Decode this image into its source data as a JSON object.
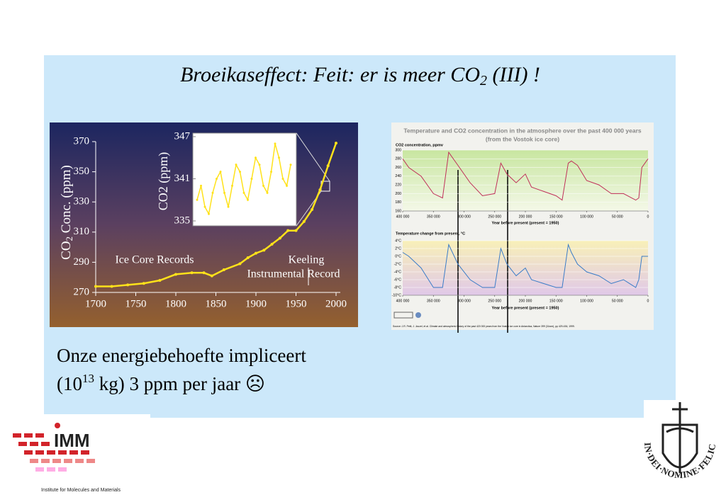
{
  "slide": {
    "title": {
      "main": "Broeikaseffect: Feit: er is meer CO",
      "sub": "2",
      "rest": " (III) !"
    },
    "body": {
      "line1": "Onze energiebehoefte impliceert",
      "line2_pre": "(10",
      "line2_sup": "13",
      "line2_rest": " kg) 3 ppm per jaar  ☹"
    },
    "logo_left": {
      "name": "IMM",
      "caption": "Institute for Molecules and Materials"
    },
    "logo_right": {
      "motto": "IN·DEI·NOMINE·FELICITER"
    }
  },
  "chart_data": [
    {
      "type": "line",
      "ylabel": {
        "main": "CO",
        "sub": "2",
        "rest": " Conc. (ppm)"
      },
      "annotations": {
        "ice": "Ice Core Records",
        "keeling1": "Keeling",
        "keeling2": "Instrumental Record"
      },
      "x": [
        1700,
        1720,
        1740,
        1760,
        1780,
        1800,
        1820,
        1835,
        1845,
        1860,
        1880,
        1890,
        1900,
        1910,
        1920,
        1930,
        1940,
        1950,
        1960,
        1970,
        1980,
        1990,
        2000
      ],
      "series": [
        {
          "color": "#ffe21a",
          "values": [
            274,
            274,
            275,
            276,
            278,
            282,
            283,
            283,
            281,
            285,
            289,
            293,
            296,
            298,
            302,
            306,
            311,
            311,
            317,
            325,
            338,
            354,
            369
          ]
        }
      ],
      "xlim": [
        1700,
        2000
      ],
      "xticks": [
        1700,
        1750,
        1800,
        1850,
        1900,
        1950,
        2000
      ],
      "ylim": [
        270,
        370
      ],
      "yticks": [
        270,
        290,
        310,
        330,
        350,
        370
      ]
    },
    {
      "type": "line",
      "ylabel": {
        "main": "CO2 (ppm)"
      },
      "series": [
        {
          "color": "#ffe21a",
          "values": [
            338,
            340,
            337,
            336,
            339,
            341,
            342,
            339,
            337,
            340,
            343,
            342,
            339,
            338,
            341,
            344,
            343,
            340,
            339,
            342,
            346,
            344,
            341,
            340,
            343
          ]
        }
      ],
      "ylim": [
        335,
        347
      ],
      "yticks": [
        335,
        341,
        347
      ]
    },
    {
      "type": "line",
      "title": "Temperature and CO2 concentration in the atmosphere over the past 400 000 years",
      "subtitle": "(from the Vostok ice core)",
      "co2_label": "CO2 concentration, ppmv",
      "temp_label": "Temperature change from present, °C",
      "xlabel": "Year before present (present = 1950)",
      "source": "Source: J.R. Petit, J. Jouzel, et al. Climate and atmospheric history of the past 420 000 years from the Vostok ice core in Antarctica, Nature 399 (3June), pp 429-436, 1999.",
      "x": [
        400000,
        390000,
        370000,
        350000,
        335000,
        325000,
        310000,
        290000,
        270000,
        250000,
        240000,
        230000,
        215000,
        200000,
        190000,
        170000,
        150000,
        140000,
        130000,
        125000,
        115000,
        100000,
        80000,
        60000,
        40000,
        20000,
        15000,
        10000,
        0
      ],
      "series": [
        {
          "name": "CO2",
          "color": "#c0305a",
          "values": [
            280,
            260,
            240,
            200,
            190,
            295,
            265,
            225,
            195,
            200,
            270,
            245,
            225,
            245,
            215,
            205,
            195,
            185,
            270,
            275,
            265,
            230,
            220,
            200,
            200,
            185,
            190,
            260,
            280
          ]
        },
        {
          "name": "Temperature",
          "color": "#3a7cc8",
          "values": [
            1,
            0,
            -3,
            -8,
            -8,
            3,
            -2,
            -6,
            -8,
            -8,
            2,
            -2,
            -5,
            -3,
            -6,
            -7,
            -8,
            -8,
            3,
            1,
            -2,
            -4,
            -5,
            -7,
            -6,
            -8,
            -6,
            0,
            0
          ]
        }
      ],
      "xlim": [
        400000,
        0
      ],
      "xticks": [
        {
          "value": 400000,
          "label": "400 000"
        },
        {
          "value": 350000,
          "label": "350 000"
        },
        {
          "value": 300000,
          "label": "300 000"
        },
        {
          "value": 250000,
          "label": "250 000"
        },
        {
          "value": 200000,
          "label": "200 000"
        },
        {
          "value": 150000,
          "label": "150 000"
        },
        {
          "value": 100000,
          "label": "100 000"
        },
        {
          "value": 50000,
          "label": "50 000"
        },
        0
      ],
      "ylim": [
        160,
        300
      ],
      "yticks": [
        160,
        180,
        200,
        220,
        240,
        260,
        280,
        300
      ],
      "y2lim": [
        -10,
        4
      ],
      "y2ticks": [
        {
          "value": -10,
          "label": "-10°C"
        },
        {
          "value": -8,
          "label": "-8°C"
        },
        {
          "value": -6,
          "label": "-6°C"
        },
        {
          "value": -4,
          "label": "-4°C"
        },
        {
          "value": -2,
          "label": "-2°C"
        },
        {
          "value": 0,
          "label": "0°C"
        },
        {
          "value": 2,
          "label": "2°C"
        },
        {
          "value": 4,
          "label": "4°C"
        }
      ]
    }
  ]
}
